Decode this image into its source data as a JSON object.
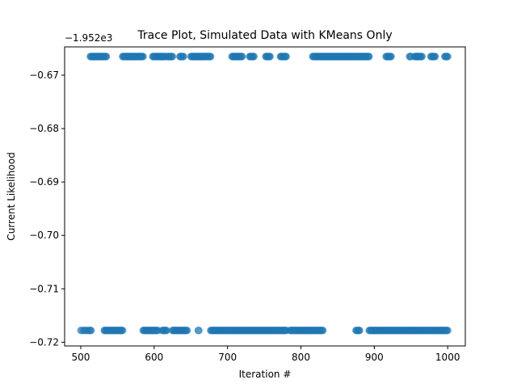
{
  "chart_data": {
    "type": "scatter",
    "title": "Trace Plot, Simulated Data with KMeans Only",
    "xlabel": "Iteration #",
    "ylabel": "Current Likelihood",
    "y_offset_label": "−1.952e3",
    "xlim": [
      478,
      1024
    ],
    "ylim": [
      -0.7207,
      -0.6647
    ],
    "x_ticks": [
      500,
      600,
      700,
      800,
      900,
      1000
    ],
    "y_ticks": [
      -0.67,
      -0.68,
      -0.69,
      -0.7,
      -0.71,
      -0.72
    ],
    "y_tick_labels": [
      "−0.67",
      "−0.68",
      "−0.69",
      "−0.70",
      "−0.71",
      "−0.72"
    ],
    "grid": false,
    "marker_color": "#1f77b4",
    "marker_alpha": 0.5,
    "series": [
      {
        "levels": [
          -0.6665,
          -0.7178
        ],
        "x": [
          500,
          502,
          504,
          506,
          508,
          510,
          512,
          513,
          514,
          515,
          516,
          517,
          518,
          519,
          520,
          521,
          522,
          523,
          524,
          525,
          526,
          527,
          528,
          529,
          530,
          531,
          532,
          533,
          534,
          535,
          536,
          537,
          538,
          539,
          540,
          541,
          542,
          543,
          544,
          545,
          546,
          547,
          548,
          549,
          550,
          551,
          552,
          553,
          554,
          555,
          556,
          557,
          558,
          559,
          560,
          561,
          562,
          563,
          564,
          565,
          566,
          567,
          568,
          569,
          570,
          571,
          572,
          573,
          574,
          575,
          576,
          577,
          578,
          579,
          580,
          581,
          582,
          583,
          584,
          585,
          586,
          587,
          588,
          589,
          590,
          591,
          592,
          593,
          594,
          595,
          596,
          597,
          598,
          599,
          600,
          601,
          602,
          603,
          604,
          605,
          606,
          607,
          608,
          609,
          610,
          611,
          612,
          613,
          614,
          615,
          616,
          617,
          618,
          619,
          620,
          621,
          622,
          623,
          624,
          625,
          626,
          627,
          628,
          629,
          630,
          631,
          632,
          633,
          634,
          635,
          636,
          637,
          638,
          639,
          640,
          641,
          642,
          643,
          644,
          645,
          646,
          647,
          648,
          649,
          650,
          651,
          652,
          653,
          654,
          655,
          656,
          657,
          658,
          659,
          660,
          661,
          662,
          663,
          664,
          665,
          666,
          667,
          668,
          669,
          670,
          671,
          672,
          673,
          674,
          675,
          676,
          677,
          678,
          679,
          680,
          681,
          682,
          683,
          684,
          685,
          686,
          687,
          688,
          689,
          690,
          691,
          692,
          693,
          694,
          695,
          696,
          697,
          698,
          699,
          700,
          701,
          702,
          703,
          704,
          705,
          706,
          707,
          708,
          709,
          710,
          711,
          712,
          713,
          714,
          715,
          716,
          717,
          718,
          719,
          720,
          721,
          722,
          723,
          724,
          725,
          726,
          727,
          728,
          729,
          730,
          731,
          732,
          733,
          734,
          735,
          736,
          737,
          738,
          739,
          740,
          741,
          742,
          743,
          744,
          745,
          746,
          747,
          748,
          749,
          750,
          751,
          752,
          753,
          754,
          755,
          756,
          757,
          758,
          759,
          760,
          761,
          762,
          763,
          764,
          765,
          766,
          767,
          768,
          769,
          770,
          771,
          772,
          773,
          774,
          775,
          776,
          777,
          778,
          779,
          780,
          781,
          782,
          783,
          784,
          785,
          786,
          787,
          788,
          789,
          790,
          791,
          792,
          793,
          794,
          795,
          796,
          797,
          798,
          799,
          800,
          801,
          802,
          803,
          804,
          805,
          806,
          807,
          808,
          809,
          810,
          811,
          812,
          813,
          814,
          815,
          816,
          817,
          818,
          819,
          820,
          821,
          822,
          823,
          824,
          825,
          826,
          827,
          828,
          829,
          830,
          831,
          832,
          833,
          834,
          835,
          836,
          837,
          838,
          839,
          840,
          841,
          842,
          843,
          844,
          845,
          846,
          847,
          848,
          849,
          850,
          851,
          852,
          853,
          854,
          855,
          856,
          857,
          858,
          859,
          860,
          861,
          862,
          863,
          864,
          865,
          866,
          867,
          868,
          869,
          870,
          871,
          872,
          873,
          874,
          875,
          876,
          877,
          878,
          879,
          880,
          881,
          882,
          883,
          884,
          885,
          886,
          887,
          888,
          889,
          890,
          891,
          892,
          893,
          894,
          895,
          896,
          897,
          898,
          899,
          900,
          901,
          902,
          903,
          904,
          905,
          906,
          907,
          908,
          909,
          910,
          911,
          912,
          913,
          914,
          915,
          916,
          917,
          918,
          919,
          920,
          921,
          922,
          923,
          924,
          925,
          926,
          927,
          928,
          929,
          930,
          931,
          932,
          933,
          934,
          935,
          936,
          937,
          938,
          939,
          940,
          941,
          942,
          943,
          944,
          945,
          946,
          947,
          948,
          949,
          950,
          951,
          952,
          953,
          954,
          955,
          956,
          957,
          958,
          959,
          960,
          961,
          962,
          963,
          964,
          965,
          966,
          967,
          968,
          969,
          970,
          971,
          972,
          973,
          974,
          975,
          976,
          977,
          978,
          979,
          980,
          981,
          982,
          983,
          984,
          985,
          986,
          987,
          988,
          989,
          990,
          991,
          992,
          993,
          994,
          995,
          996,
          997,
          998,
          999,
          1000
        ],
        "top_ranges": [
          [
            513,
            535
          ],
          [
            557,
            585
          ],
          [
            598,
            615
          ],
          [
            618,
            625
          ],
          [
            635,
            640
          ],
          [
            650,
            677
          ],
          [
            706,
            720
          ],
          [
            730,
            736
          ],
          [
            752,
            758
          ],
          [
            772,
            780
          ],
          [
            816,
            893
          ],
          [
            916,
            923
          ],
          [
            948,
            950
          ],
          [
            955,
            965
          ],
          [
            977,
            983
          ],
          [
            996,
            1000
          ]
        ],
        "bottom_ranges": [
          [
            500,
            514
          ],
          [
            532,
            557
          ],
          [
            585,
            605
          ],
          [
            611,
            617
          ],
          [
            625,
            645
          ],
          [
            660,
            661
          ],
          [
            677,
            780
          ],
          [
            785,
            830
          ],
          [
            875,
            880
          ],
          [
            893,
            1000
          ]
        ]
      }
    ]
  }
}
